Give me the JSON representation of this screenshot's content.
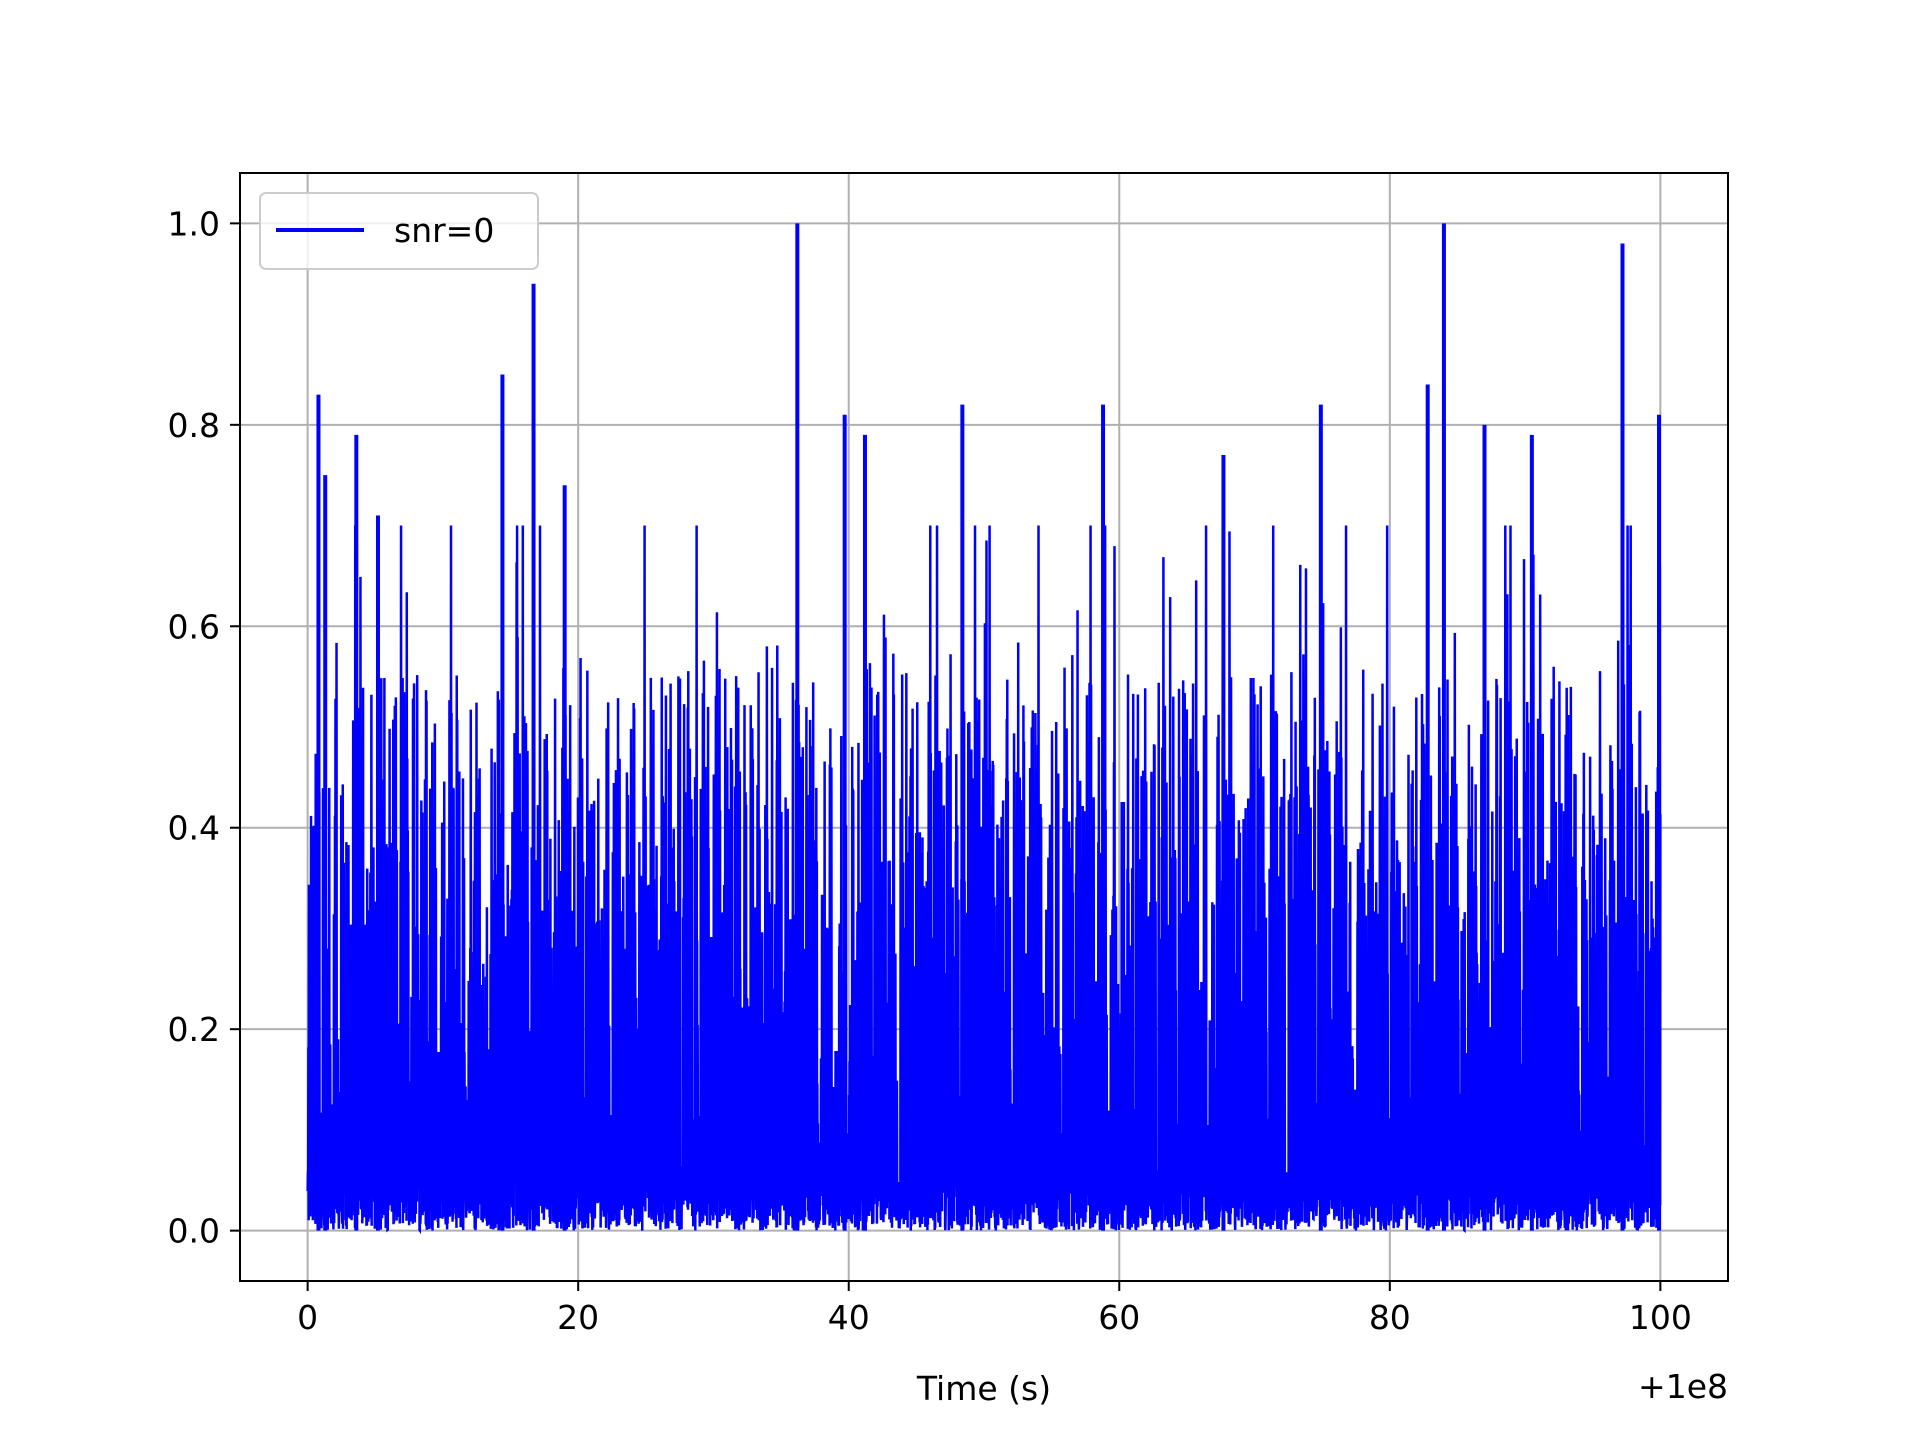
{
  "chart_data": {
    "type": "line",
    "title": "",
    "xlabel": "Time (s)",
    "ylabel": "",
    "x_offset_label": "+1e8",
    "xlim": [
      -5,
      105
    ],
    "ylim": [
      -0.05,
      1.05
    ],
    "x_ticks": [
      0,
      20,
      40,
      60,
      80,
      100
    ],
    "x_tick_labels": [
      "0",
      "20",
      "40",
      "60",
      "80",
      "100"
    ],
    "y_ticks": [
      0.0,
      0.2,
      0.4,
      0.6,
      0.8,
      1.0
    ],
    "y_tick_labels": [
      "0.0",
      "0.2",
      "0.4",
      "0.6",
      "0.8",
      "1.0"
    ],
    "grid": true,
    "legend_position": "upper-left",
    "series": [
      {
        "name": "snr=0",
        "color": "#0000ff",
        "x_range": [
          0,
          100
        ],
        "min": 0.0,
        "max": 1.0,
        "peaks": [
          {
            "x": 0.8,
            "y": 0.83
          },
          {
            "x": 1.3,
            "y": 0.75
          },
          {
            "x": 3.6,
            "y": 0.79
          },
          {
            "x": 5.2,
            "y": 0.71
          },
          {
            "x": 14.4,
            "y": 0.85
          },
          {
            "x": 16.7,
            "y": 0.94
          },
          {
            "x": 19.0,
            "y": 0.74
          },
          {
            "x": 36.2,
            "y": 1.0
          },
          {
            "x": 39.7,
            "y": 0.81
          },
          {
            "x": 41.2,
            "y": 0.79
          },
          {
            "x": 48.4,
            "y": 0.82
          },
          {
            "x": 58.8,
            "y": 0.82
          },
          {
            "x": 67.7,
            "y": 0.77
          },
          {
            "x": 74.9,
            "y": 0.82
          },
          {
            "x": 82.8,
            "y": 0.84
          },
          {
            "x": 84.0,
            "y": 1.0
          },
          {
            "x": 87.0,
            "y": 0.8
          },
          {
            "x": 90.5,
            "y": 0.79
          },
          {
            "x": 97.2,
            "y": 0.98
          },
          {
            "x": 99.9,
            "y": 0.81
          }
        ]
      }
    ]
  }
}
